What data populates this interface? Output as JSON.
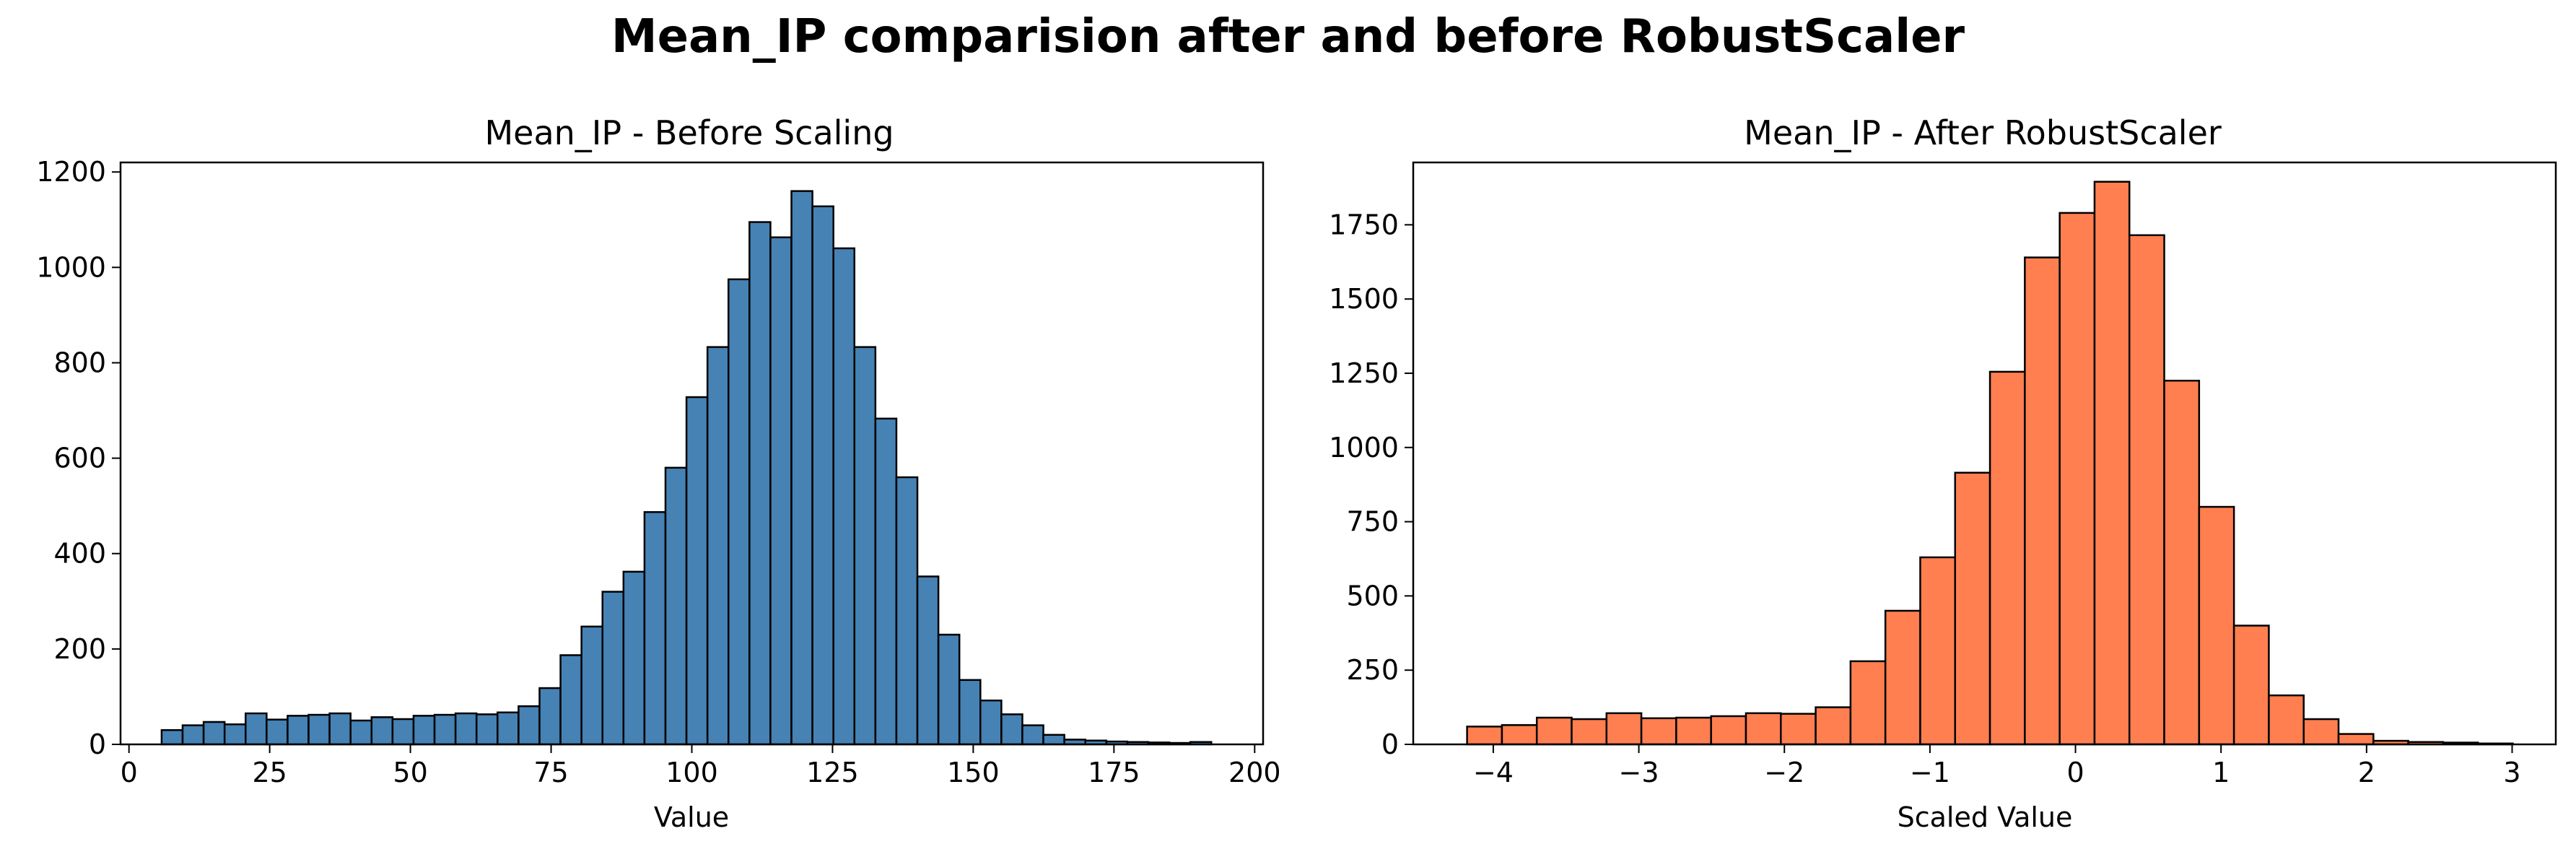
{
  "figure": {
    "suptitle": "Mean_IP comparision after and before RobustScaler"
  },
  "chart_data": [
    {
      "type": "bar",
      "title": "Mean_IP - Before Scaling",
      "xlabel": "Value",
      "ylabel": "",
      "bar_color": "#4682b4",
      "edge_color": "#000000",
      "xlim": [
        -1.5,
        201.5
      ],
      "ylim": [
        0,
        1220
      ],
      "xticks": [
        0,
        25,
        50,
        75,
        100,
        125,
        150,
        175,
        200
      ],
      "yticks": [
        0,
        200,
        400,
        600,
        800,
        1000,
        1200
      ],
      "grid": false,
      "bins_start": 5.8,
      "bin_width": 3.73,
      "values": [
        30,
        40,
        47,
        42,
        65,
        52,
        60,
        62,
        65,
        50,
        57,
        53,
        60,
        62,
        65,
        63,
        67,
        80,
        118,
        187,
        247,
        320,
        362,
        487,
        580,
        728,
        833,
        975,
        1095,
        1063,
        1160,
        1128,
        1040,
        833,
        683,
        560,
        352,
        230,
        135,
        92,
        63,
        40,
        20,
        10,
        8,
        6,
        5,
        4,
        3,
        5
      ]
    },
    {
      "type": "bar",
      "title": "Mean_IP - After RobustScaler",
      "xlabel": "Scaled Value",
      "ylabel": "",
      "bar_color": "#ff7f50",
      "edge_color": "#000000",
      "xlim": [
        -4.55,
        3.3
      ],
      "ylim": [
        0,
        1960
      ],
      "xticks": [
        -4,
        -3,
        -2,
        -1,
        0,
        1,
        2,
        3
      ],
      "yticks": [
        0,
        250,
        500,
        750,
        1000,
        1250,
        1500,
        1750
      ],
      "grid": false,
      "bins_start": -4.18,
      "bin_width": 0.2395,
      "values": [
        60,
        65,
        90,
        85,
        105,
        88,
        90,
        95,
        105,
        103,
        125,
        280,
        450,
        630,
        915,
        1255,
        1640,
        1790,
        1895,
        1715,
        1225,
        800,
        400,
        165,
        85,
        35,
        12,
        8,
        6,
        3
      ]
    }
  ]
}
